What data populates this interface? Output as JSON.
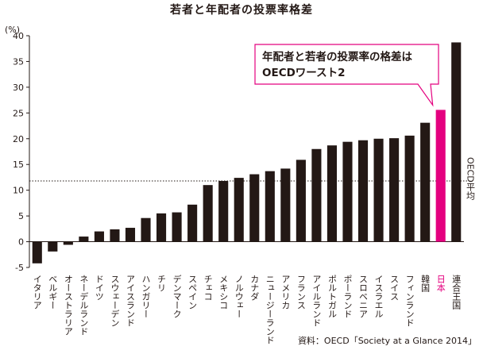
{
  "title": "若者と年配者の投票率格差",
  "source": "資料：OECD「Society at a Glance 2014」",
  "callout": {
    "line1": "年配者と若者の投票率の格差は",
    "line2": "OECDワースト2"
  },
  "colors": {
    "bar": "#231815",
    "highlight": "#e4007f",
    "axis": "#231815"
  },
  "chart_data": {
    "type": "bar",
    "title": "若者と年配者の投票率格差",
    "ylabel": "(%)",
    "ylim": [
      -5,
      40
    ],
    "yticks": [
      -5,
      0,
      5,
      10,
      15,
      20,
      25,
      30,
      35,
      40
    ],
    "categories": [
      "イタリア",
      "ベルギー",
      "オーストラリア",
      "ネーデルランド",
      "ドイツ",
      "スウェーデン",
      "アイスランド",
      "ハンガリー",
      "チリ",
      "デンマーク",
      "スペイン",
      "チェコ",
      "メキシコ",
      "ノルウェー",
      "カナダ",
      "ニュージーランド",
      "アメリカ",
      "フランス",
      "アイルランド",
      "ポルトガル",
      "ポーランド",
      "スロベニア",
      "イスラエル",
      "スイス",
      "フィンランド",
      "韓国",
      "日本",
      "連合王国"
    ],
    "values": [
      -4.2,
      -1.9,
      -0.6,
      1.0,
      2.0,
      2.4,
      2.7,
      4.6,
      5.5,
      5.7,
      7.2,
      11.0,
      11.8,
      12.4,
      13.1,
      13.7,
      14.2,
      15.9,
      18.0,
      18.7,
      19.4,
      19.7,
      20.0,
      20.1,
      20.6,
      23.1,
      25.6,
      38.7
    ],
    "highlight": "日本",
    "reference_line": {
      "label": "OECD平均",
      "value": 11.8
    },
    "grid": false
  }
}
